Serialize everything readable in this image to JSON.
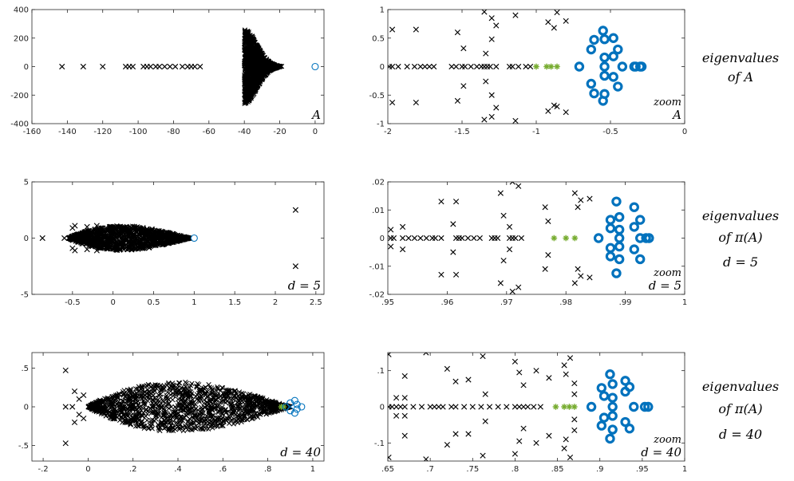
{
  "colors": {
    "blue": "#0072BD",
    "green": "#77AC30",
    "black": "#000000"
  },
  "row_captions": [
    {
      "lines": [
        "eigenvalues",
        "of A"
      ]
    },
    {
      "lines": [
        "eigenvalues",
        "of π(A)",
        "d = 5"
      ]
    },
    {
      "lines": [
        "eigenvalues",
        "of π(A)",
        "d = 40"
      ]
    }
  ],
  "chart_data": [
    {
      "type": "scatter",
      "panel": "row1-left",
      "xlim": [
        -160,
        5
      ],
      "ylim": [
        -400,
        400
      ],
      "xticks": [
        -160,
        -140,
        -120,
        -100,
        -80,
        -60,
        -40,
        -20,
        0
      ],
      "yticks": [
        -400,
        -200,
        0,
        200,
        400
      ],
      "annotation": [
        "A"
      ],
      "cloud": {
        "center_x": -40,
        "x_halfwidth": 22,
        "peak_y": 260
      },
      "x_points": [
        [
          -143,
          0
        ],
        [
          -131,
          0
        ],
        [
          -120,
          0
        ],
        [
          -107,
          0
        ],
        [
          -105,
          0
        ],
        [
          -103,
          0
        ],
        [
          -97,
          0
        ],
        [
          -95,
          0
        ],
        [
          -93,
          0
        ],
        [
          -90,
          0
        ],
        [
          -88,
          0
        ],
        [
          -85,
          0
        ],
        [
          -82,
          0
        ],
        [
          -79,
          0
        ],
        [
          -75,
          0
        ],
        [
          -72,
          0
        ],
        [
          -70,
          0
        ],
        [
          -68,
          0
        ],
        [
          -65,
          0
        ]
      ],
      "o_points": [
        [
          0,
          0
        ]
      ]
    },
    {
      "type": "scatter",
      "panel": "row1-right",
      "xlim": [
        -2,
        0
      ],
      "ylim": [
        -1,
        1
      ],
      "xticks": [
        -2,
        -1.5,
        -1,
        -0.5,
        0
      ],
      "yticks": [
        -1,
        -0.5,
        0,
        0.5,
        1
      ],
      "annotation": [
        "zoom",
        "A"
      ],
      "x_points": [
        [
          -1.99,
          0
        ],
        [
          -1.97,
          0
        ],
        [
          -1.93,
          0
        ],
        [
          -1.87,
          0
        ],
        [
          -1.82,
          0
        ],
        [
          -1.78,
          0
        ],
        [
          -1.75,
          0
        ],
        [
          -1.72,
          0
        ],
        [
          -1.69,
          0
        ],
        [
          -1.57,
          0
        ],
        [
          -1.54,
          0
        ],
        [
          -1.5,
          0
        ],
        [
          -1.48,
          0
        ],
        [
          -1.44,
          0
        ],
        [
          -1.4,
          0
        ],
        [
          -1.37,
          0
        ],
        [
          -1.35,
          0
        ],
        [
          -1.33,
          0
        ],
        [
          -1.31,
          0
        ],
        [
          -1.27,
          0
        ],
        [
          -1.18,
          0
        ],
        [
          -1.16,
          0
        ],
        [
          -1.12,
          0
        ],
        [
          -1.07,
          0
        ],
        [
          -1.04,
          0
        ],
        [
          -1.97,
          0.65
        ],
        [
          -1.97,
          -0.63
        ],
        [
          -1.81,
          0.65
        ],
        [
          -1.81,
          -0.63
        ],
        [
          -1.53,
          0.6
        ],
        [
          -1.53,
          -0.6
        ],
        [
          -1.49,
          0.32
        ],
        [
          -1.49,
          -0.34
        ],
        [
          -1.35,
          0.96
        ],
        [
          -1.35,
          -0.93
        ],
        [
          -1.34,
          0.23
        ],
        [
          -1.34,
          -0.26
        ],
        [
          -1.3,
          0.85
        ],
        [
          -1.3,
          -0.88
        ],
        [
          -1.3,
          0.48
        ],
        [
          -1.3,
          -0.5
        ],
        [
          -1.27,
          0.72
        ],
        [
          -1.27,
          -0.72
        ],
        [
          -1.14,
          0.9
        ],
        [
          -1.14,
          -0.95
        ],
        [
          -0.92,
          0.78
        ],
        [
          -0.92,
          -0.78
        ],
        [
          -0.88,
          0.68
        ],
        [
          -0.88,
          -0.68
        ],
        [
          -0.86,
          0.95
        ],
        [
          -0.86,
          -0.7
        ],
        [
          -0.8,
          0.8
        ],
        [
          -0.8,
          -0.8
        ]
      ],
      "o_points": [
        [
          -0.71,
          0
        ],
        [
          -0.63,
          0.3
        ],
        [
          -0.63,
          -0.3
        ],
        [
          -0.61,
          0.47
        ],
        [
          -0.61,
          -0.47
        ],
        [
          -0.55,
          0.63
        ],
        [
          -0.55,
          -0.6
        ],
        [
          -0.54,
          0.48
        ],
        [
          -0.54,
          -0.48
        ],
        [
          -0.54,
          0.16
        ],
        [
          -0.54,
          -0.16
        ],
        [
          -0.54,
          0
        ],
        [
          -0.48,
          0.5
        ],
        [
          -0.48,
          0.18
        ],
        [
          -0.48,
          -0.18
        ],
        [
          -0.45,
          0.3
        ],
        [
          -0.45,
          -0.35
        ],
        [
          -0.42,
          0
        ],
        [
          -0.34,
          0
        ],
        [
          -0.33,
          0
        ],
        [
          -0.3,
          0
        ],
        [
          -0.29,
          0
        ]
      ],
      "s_points": [
        [
          -1.0,
          0
        ],
        [
          -0.93,
          0
        ],
        [
          -0.9,
          0
        ],
        [
          -0.86,
          0
        ]
      ]
    },
    {
      "type": "scatter",
      "panel": "row2-left",
      "xlim": [
        -1,
        2.6
      ],
      "ylim": [
        -5,
        5
      ],
      "xticks": [
        -0.5,
        0,
        0.5,
        1,
        1.5,
        2,
        2.5
      ],
      "yticks": [
        -5,
        0,
        5
      ],
      "annotation": [
        "d = 5"
      ],
      "cloud": {
        "x_from": -0.55,
        "x_to": 0.95,
        "peak_y": 1.1
      },
      "x_points": [
        [
          -0.87,
          0
        ],
        [
          2.25,
          2.5
        ],
        [
          2.25,
          -2.5
        ],
        [
          -0.6,
          0
        ],
        [
          -0.5,
          0.9
        ],
        [
          -0.5,
          -0.9
        ],
        [
          -0.47,
          1.1
        ],
        [
          -0.47,
          -1.1
        ],
        [
          -0.32,
          1.0
        ],
        [
          -0.32,
          -1.0
        ],
        [
          -0.2,
          1.1
        ],
        [
          -0.2,
          -1.1
        ],
        [
          -0.15,
          0.9
        ],
        [
          -0.15,
          -0.9
        ]
      ],
      "o_points": [
        [
          1.0,
          0
        ]
      ]
    },
    {
      "type": "scatter",
      "panel": "row2-right",
      "xlim": [
        0.95,
        1
      ],
      "ylim": [
        -0.02,
        0.02
      ],
      "xticks": [
        0.95,
        0.96,
        0.97,
        0.98,
        0.99,
        1
      ],
      "yticks": [
        -0.02,
        -0.01,
        0,
        0.01,
        0.02
      ],
      "annotation": [
        "zoom",
        "d = 5"
      ],
      "x_points": [
        [
          0.9505,
          0
        ],
        [
          0.951,
          0
        ],
        [
          0.9525,
          0
        ],
        [
          0.9535,
          0
        ],
        [
          0.9545,
          0
        ],
        [
          0.9555,
          0
        ],
        [
          0.9565,
          0
        ],
        [
          0.9575,
          0
        ],
        [
          0.958,
          0
        ],
        [
          0.959,
          0
        ],
        [
          0.9615,
          0
        ],
        [
          0.962,
          0
        ],
        [
          0.9625,
          0
        ],
        [
          0.9635,
          0
        ],
        [
          0.9645,
          0
        ],
        [
          0.9655,
          0
        ],
        [
          0.9675,
          0
        ],
        [
          0.968,
          0
        ],
        [
          0.9685,
          0
        ],
        [
          0.9705,
          0
        ],
        [
          0.971,
          0
        ],
        [
          0.9715,
          0
        ],
        [
          0.9725,
          0
        ],
        [
          0.9505,
          0.003
        ],
        [
          0.9505,
          -0.003
        ],
        [
          0.9525,
          0.004
        ],
        [
          0.9525,
          -0.004
        ],
        [
          0.959,
          0.013
        ],
        [
          0.959,
          -0.013
        ],
        [
          0.9615,
          0.013
        ],
        [
          0.9615,
          -0.013
        ],
        [
          0.961,
          0.005
        ],
        [
          0.961,
          -0.005
        ],
        [
          0.969,
          0.016
        ],
        [
          0.969,
          -0.016
        ],
        [
          0.9695,
          0.008
        ],
        [
          0.9695,
          -0.008
        ],
        [
          0.971,
          0.02
        ],
        [
          0.971,
          -0.019
        ],
        [
          0.972,
          0.0185
        ],
        [
          0.972,
          -0.0175
        ],
        [
          0.9705,
          0.004
        ],
        [
          0.9705,
          -0.004
        ],
        [
          0.9765,
          0.011
        ],
        [
          0.9765,
          -0.011
        ],
        [
          0.977,
          0.006
        ],
        [
          0.977,
          -0.006
        ],
        [
          0.9815,
          0.016
        ],
        [
          0.9815,
          -0.016
        ],
        [
          0.982,
          0.011
        ],
        [
          0.982,
          -0.011
        ],
        [
          0.9825,
          0.0135
        ],
        [
          0.9825,
          -0.0135
        ],
        [
          0.984,
          0.014
        ],
        [
          0.984,
          -0.014
        ]
      ],
      "o_points": [
        [
          0.9855,
          0
        ],
        [
          0.9875,
          0.0065
        ],
        [
          0.9875,
          -0.0065
        ],
        [
          0.9875,
          0.0035
        ],
        [
          0.9875,
          -0.0035
        ],
        [
          0.9885,
          0.013
        ],
        [
          0.9885,
          -0.0125
        ],
        [
          0.989,
          0.0075
        ],
        [
          0.989,
          -0.0075
        ],
        [
          0.989,
          0.003
        ],
        [
          0.989,
          -0.003
        ],
        [
          0.989,
          0
        ],
        [
          0.9915,
          0.011
        ],
        [
          0.9915,
          0.004
        ],
        [
          0.9915,
          -0.004
        ],
        [
          0.9925,
          0.0065
        ],
        [
          0.9925,
          -0.0075
        ],
        [
          0.9925,
          0
        ],
        [
          0.9935,
          0
        ],
        [
          0.994,
          0
        ]
      ],
      "s_points": [
        [
          0.978,
          0
        ],
        [
          0.98,
          0
        ],
        [
          0.9815,
          0
        ]
      ]
    },
    {
      "type": "scatter",
      "panel": "row3-left",
      "xlim": [
        -0.25,
        1.05
      ],
      "ylim": [
        -0.7,
        0.7
      ],
      "xticks": [
        -0.2,
        0,
        0.2,
        0.4,
        0.6,
        0.8,
        1
      ],
      "yticks": [
        -0.5,
        0,
        0.5
      ],
      "annotation": [
        "d = 40"
      ],
      "cloud": {
        "x_from": 0.0,
        "x_to": 0.9,
        "peak_y": 0.32
      },
      "x_points": [
        [
          -0.1,
          0.47
        ],
        [
          -0.1,
          -0.47
        ],
        [
          -0.1,
          0
        ],
        [
          -0.06,
          0.2
        ],
        [
          -0.06,
          -0.2
        ],
        [
          -0.04,
          0.1
        ],
        [
          -0.04,
          -0.1
        ],
        [
          -0.02,
          0.15
        ],
        [
          -0.02,
          -0.15
        ],
        [
          -0.07,
          0
        ]
      ],
      "o_points": [
        [
          0.88,
          0
        ],
        [
          0.9,
          0.05
        ],
        [
          0.9,
          -0.05
        ],
        [
          0.92,
          0.08
        ],
        [
          0.92,
          -0.08
        ],
        [
          0.93,
          0.03
        ],
        [
          0.93,
          -0.03
        ],
        [
          0.95,
          0
        ]
      ],
      "s_points": [
        [
          0.86,
          0
        ],
        [
          0.87,
          0
        ]
      ]
    },
    {
      "type": "scatter",
      "panel": "row3-right",
      "xlim": [
        0.65,
        1
      ],
      "ylim": [
        -0.15,
        0.15
      ],
      "xticks": [
        0.65,
        0.7,
        0.75,
        0.8,
        0.85,
        0.9,
        0.95,
        1
      ],
      "yticks": [
        -0.1,
        0,
        0.1
      ],
      "annotation": [
        "zoom",
        "d = 40"
      ],
      "x_points": [
        [
          0.651,
          0
        ],
        [
          0.655,
          0
        ],
        [
          0.66,
          0
        ],
        [
          0.665,
          0
        ],
        [
          0.67,
          0
        ],
        [
          0.68,
          0
        ],
        [
          0.69,
          0
        ],
        [
          0.7,
          0
        ],
        [
          0.705,
          0
        ],
        [
          0.71,
          0
        ],
        [
          0.715,
          0
        ],
        [
          0.725,
          0
        ],
        [
          0.73,
          0
        ],
        [
          0.74,
          0
        ],
        [
          0.75,
          0
        ],
        [
          0.76,
          0
        ],
        [
          0.77,
          0
        ],
        [
          0.78,
          0
        ],
        [
          0.79,
          0
        ],
        [
          0.8,
          0
        ],
        [
          0.805,
          0
        ],
        [
          0.81,
          0
        ],
        [
          0.815,
          0
        ],
        [
          0.822,
          0
        ],
        [
          0.83,
          0
        ],
        [
          0.651,
          0.145
        ],
        [
          0.651,
          -0.14
        ],
        [
          0.66,
          0.025
        ],
        [
          0.66,
          -0.025
        ],
        [
          0.67,
          0.085
        ],
        [
          0.67,
          -0.08
        ],
        [
          0.67,
          0.025
        ],
        [
          0.67,
          -0.025
        ],
        [
          0.695,
          0.15
        ],
        [
          0.695,
          -0.145
        ],
        [
          0.72,
          0.105
        ],
        [
          0.72,
          -0.105
        ],
        [
          0.73,
          0.07
        ],
        [
          0.73,
          -0.075
        ],
        [
          0.745,
          0.075
        ],
        [
          0.745,
          -0.075
        ],
        [
          0.762,
          0.14
        ],
        [
          0.762,
          -0.135
        ],
        [
          0.765,
          0.035
        ],
        [
          0.765,
          -0.04
        ],
        [
          0.8,
          0.125
        ],
        [
          0.8,
          -0.13
        ],
        [
          0.805,
          0.095
        ],
        [
          0.805,
          -0.095
        ],
        [
          0.81,
          0.06
        ],
        [
          0.81,
          -0.06
        ],
        [
          0.825,
          0.1
        ],
        [
          0.825,
          -0.1
        ],
        [
          0.84,
          0.08
        ],
        [
          0.84,
          -0.08
        ],
        [
          0.858,
          0.115
        ],
        [
          0.858,
          -0.115
        ],
        [
          0.86,
          0.09
        ],
        [
          0.86,
          -0.09
        ],
        [
          0.865,
          0.135
        ],
        [
          0.865,
          -0.14
        ],
        [
          0.87,
          0.065
        ],
        [
          0.87,
          -0.065
        ],
        [
          0.87,
          0.035
        ],
        [
          0.87,
          -0.035
        ]
      ],
      "o_points": [
        [
          0.89,
          0
        ],
        [
          0.902,
          0.052
        ],
        [
          0.902,
          -0.052
        ],
        [
          0.905,
          0.03
        ],
        [
          0.905,
          -0.03
        ],
        [
          0.912,
          0.09
        ],
        [
          0.912,
          -0.088
        ],
        [
          0.915,
          0.063
        ],
        [
          0.915,
          -0.063
        ],
        [
          0.915,
          0.025
        ],
        [
          0.915,
          -0.025
        ],
        [
          0.915,
          0
        ],
        [
          0.93,
          0.072
        ],
        [
          0.93,
          0.042
        ],
        [
          0.93,
          -0.042
        ],
        [
          0.935,
          0.055
        ],
        [
          0.935,
          -0.06
        ],
        [
          0.94,
          0
        ],
        [
          0.953,
          0
        ],
        [
          0.957,
          0
        ]
      ],
      "s_points": [
        [
          0.848,
          0
        ],
        [
          0.858,
          0
        ],
        [
          0.864,
          0
        ],
        [
          0.87,
          0
        ]
      ]
    }
  ]
}
